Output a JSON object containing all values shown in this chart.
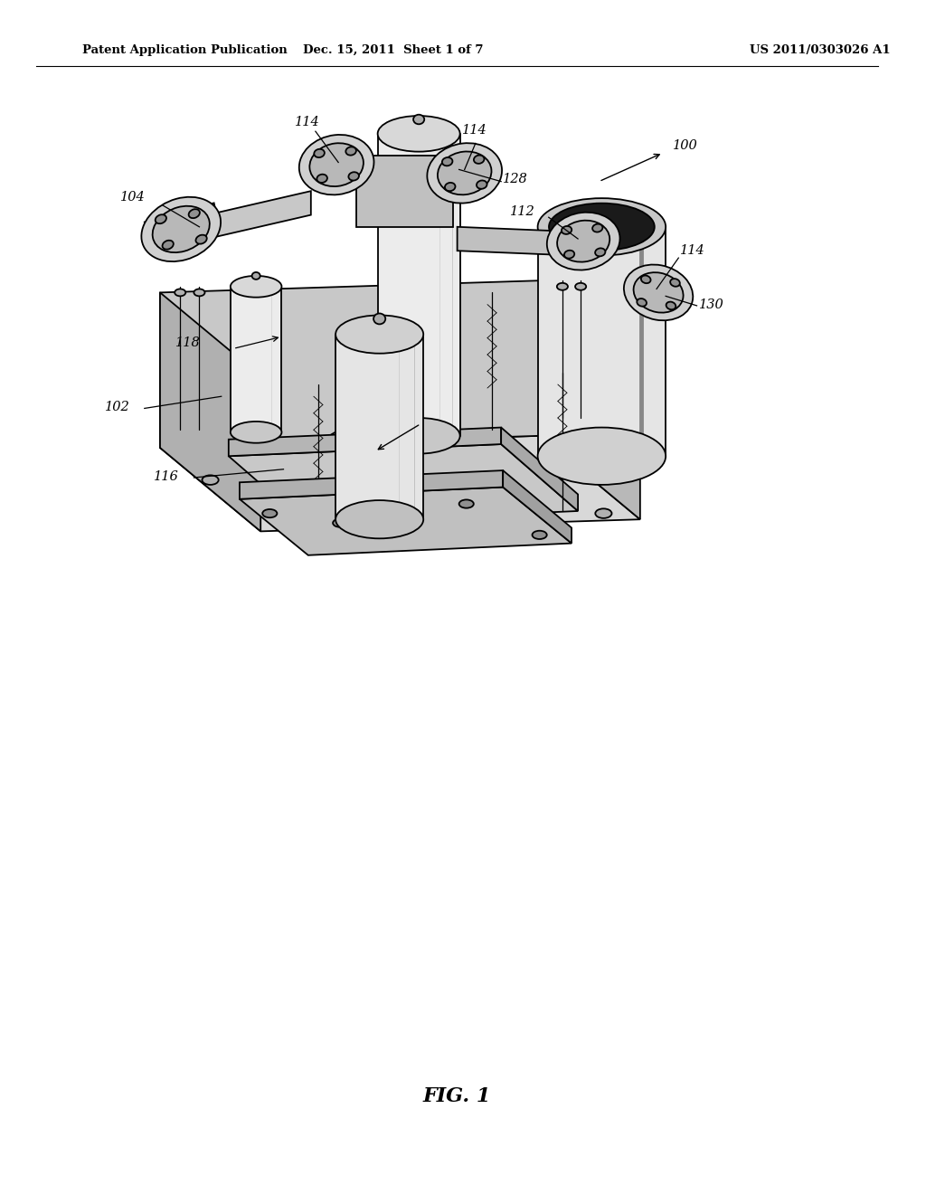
{
  "bg_color": "#ffffff",
  "header_left": "Patent Application Publication",
  "header_mid": "Dec. 15, 2011  Sheet 1 of 7",
  "header_right": "US 2011/0303026 A1",
  "fig_label": "FIG. 1"
}
